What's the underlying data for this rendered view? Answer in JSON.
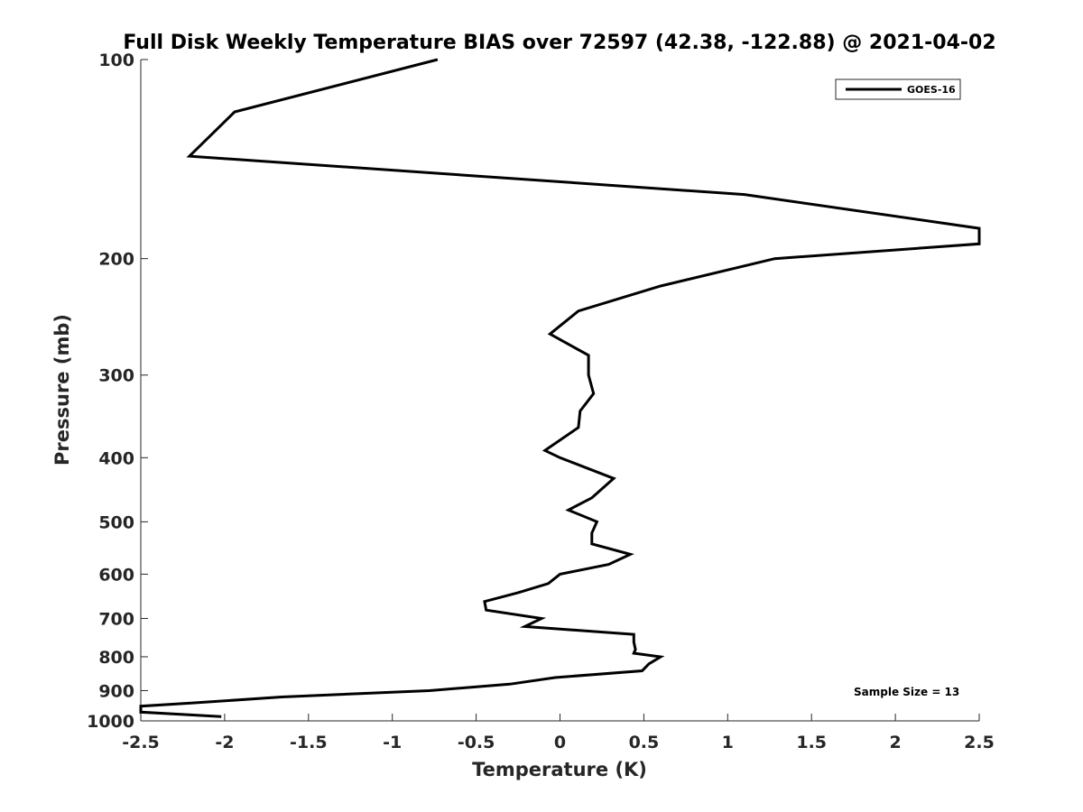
{
  "chart_data": {
    "type": "line",
    "title": "Full Disk Weekly Temperature BIAS over 72597 (42.38, -122.88) @ 2021-04-02",
    "xlabel": "Temperature (K)",
    "ylabel": "Pressure (mb)",
    "xlim": [
      -2.5,
      2.5
    ],
    "ylim": [
      100,
      1000
    ],
    "y_scale": "log",
    "y_reversed": true,
    "grid": false,
    "x_ticks": [
      "-2.5",
      "-2",
      "-1.5",
      "-1",
      "-0.5",
      "0",
      "0.5",
      "1",
      "1.5",
      "2",
      "2.5"
    ],
    "y_ticks": [
      "100",
      "200",
      "300",
      "400",
      "500",
      "600",
      "700",
      "800",
      "900",
      "1000"
    ],
    "legend": {
      "position": "top-right",
      "entries": [
        "GOES-16"
      ]
    },
    "annotation": "Sample Size = 13",
    "series": [
      {
        "name": "GOES-16",
        "color": "#000000",
        "points": [
          {
            "x": -0.73,
            "y": 100
          },
          {
            "x": -1.94,
            "y": 120
          },
          {
            "x": -2.21,
            "y": 140
          },
          {
            "x": 1.1,
            "y": 160
          },
          {
            "x": 2.5,
            "y": 180
          },
          {
            "x": 2.5,
            "y": 190
          },
          {
            "x": 1.28,
            "y": 200
          },
          {
            "x": 0.6,
            "y": 220
          },
          {
            "x": 0.11,
            "y": 240
          },
          {
            "x": -0.06,
            "y": 260
          },
          {
            "x": 0.17,
            "y": 280
          },
          {
            "x": 0.17,
            "y": 300
          },
          {
            "x": 0.2,
            "y": 320
          },
          {
            "x": 0.12,
            "y": 340
          },
          {
            "x": 0.11,
            "y": 360
          },
          {
            "x": -0.09,
            "y": 390
          },
          {
            "x": 0.0,
            "y": 400
          },
          {
            "x": 0.32,
            "y": 430
          },
          {
            "x": 0.19,
            "y": 460
          },
          {
            "x": 0.05,
            "y": 480
          },
          {
            "x": 0.22,
            "y": 500
          },
          {
            "x": 0.19,
            "y": 520
          },
          {
            "x": 0.19,
            "y": 540
          },
          {
            "x": 0.42,
            "y": 560
          },
          {
            "x": 0.29,
            "y": 580
          },
          {
            "x": 0.0,
            "y": 600
          },
          {
            "x": -0.07,
            "y": 620
          },
          {
            "x": -0.25,
            "y": 640
          },
          {
            "x": -0.45,
            "y": 660
          },
          {
            "x": -0.44,
            "y": 680
          },
          {
            "x": -0.11,
            "y": 700
          },
          {
            "x": -0.21,
            "y": 720
          },
          {
            "x": 0.44,
            "y": 740
          },
          {
            "x": 0.44,
            "y": 760
          },
          {
            "x": 0.45,
            "y": 780
          },
          {
            "x": 0.44,
            "y": 790
          },
          {
            "x": 0.6,
            "y": 800
          },
          {
            "x": 0.53,
            "y": 820
          },
          {
            "x": 0.49,
            "y": 840
          },
          {
            "x": -0.03,
            "y": 860
          },
          {
            "x": -0.3,
            "y": 880
          },
          {
            "x": -0.78,
            "y": 900
          },
          {
            "x": -1.66,
            "y": 920
          },
          {
            "x": -2.2,
            "y": 940
          },
          {
            "x": -2.5,
            "y": 950
          },
          {
            "x": -2.5,
            "y": 970
          },
          {
            "x": -2.02,
            "y": 985
          }
        ]
      }
    ]
  }
}
